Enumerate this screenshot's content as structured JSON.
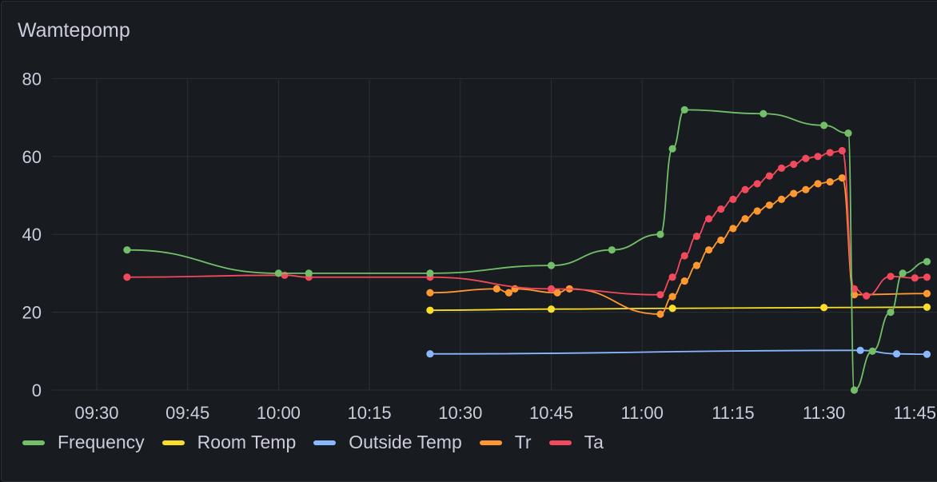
{
  "panel": {
    "title": "Wamtepomp"
  },
  "chart_data": {
    "type": "line",
    "title": "Wamtepomp",
    "xlabel": "",
    "ylabel": "",
    "ylim": [
      0,
      80
    ],
    "xlim": [
      "09:22",
      "11:47"
    ],
    "yticks": [
      "0",
      "20",
      "40",
      "60",
      "80"
    ],
    "xticks": [
      "09:30",
      "09:45",
      "10:00",
      "10:15",
      "10:30",
      "10:45",
      "11:00",
      "11:15",
      "11:30",
      "11:45"
    ],
    "grid": true,
    "legend_position": "bottom-left",
    "series": [
      {
        "name": "Frequency",
        "color": "#73bf69",
        "points": [
          [
            "09:35",
            36
          ],
          [
            "10:00",
            30
          ],
          [
            "10:05",
            30
          ],
          [
            "10:25",
            30
          ],
          [
            "10:45",
            32
          ],
          [
            "10:55",
            36
          ],
          [
            "11:03",
            40
          ],
          [
            "11:05",
            62
          ],
          [
            "11:07",
            72
          ],
          [
            "11:20",
            71
          ],
          [
            "11:30",
            68
          ],
          [
            "11:34",
            66
          ],
          [
            "11:35",
            0
          ],
          [
            "11:38",
            10
          ],
          [
            "11:41",
            20
          ],
          [
            "11:43",
            30
          ],
          [
            "11:47",
            33
          ]
        ]
      },
      {
        "name": "Room Temp",
        "color": "#fade2a",
        "points": [
          [
            "10:25",
            20.5
          ],
          [
            "10:45",
            20.8
          ],
          [
            "11:05",
            21
          ],
          [
            "11:30",
            21.2
          ],
          [
            "11:47",
            21.3
          ]
        ]
      },
      {
        "name": "Outside Temp",
        "color": "#8ab8ff",
        "points": [
          [
            "10:25",
            9.3
          ],
          [
            "11:36",
            10.2
          ],
          [
            "11:42",
            9.3
          ],
          [
            "11:47",
            9.2
          ]
        ]
      },
      {
        "name": "Tr",
        "color": "#ff9830",
        "points": [
          [
            "10:25",
            25
          ],
          [
            "10:36",
            26
          ],
          [
            "10:38",
            25
          ],
          [
            "10:39",
            26
          ],
          [
            "10:46",
            25
          ],
          [
            "10:48",
            26
          ],
          [
            "11:03",
            19.5
          ],
          [
            "11:05",
            24
          ],
          [
            "11:07",
            28
          ],
          [
            "11:09",
            32
          ],
          [
            "11:11",
            36
          ],
          [
            "11:13",
            38.5
          ],
          [
            "11:15",
            41.5
          ],
          [
            "11:17",
            44
          ],
          [
            "11:19",
            46
          ],
          [
            "11:21",
            47.5
          ],
          [
            "11:23",
            49
          ],
          [
            "11:25",
            50.5
          ],
          [
            "11:27",
            51.5
          ],
          [
            "11:29",
            53
          ],
          [
            "11:31",
            53.5
          ],
          [
            "11:33",
            54.5
          ],
          [
            "11:35",
            24.5
          ],
          [
            "11:47",
            24.8
          ]
        ]
      },
      {
        "name": "Ta",
        "color": "#f2495c",
        "points": [
          [
            "09:35",
            29
          ],
          [
            "10:01",
            29.5
          ],
          [
            "10:05",
            29
          ],
          [
            "10:25",
            29
          ],
          [
            "10:45",
            26
          ],
          [
            "11:03",
            24.5
          ],
          [
            "11:05",
            29
          ],
          [
            "11:07",
            34.5
          ],
          [
            "11:09",
            39.5
          ],
          [
            "11:11",
            44
          ],
          [
            "11:13",
            46.5
          ],
          [
            "11:15",
            49
          ],
          [
            "11:17",
            51.5
          ],
          [
            "11:19",
            53
          ],
          [
            "11:21",
            55
          ],
          [
            "11:23",
            57
          ],
          [
            "11:25",
            58
          ],
          [
            "11:27",
            59.5
          ],
          [
            "11:29",
            60
          ],
          [
            "11:31",
            61
          ],
          [
            "11:33",
            61.5
          ],
          [
            "11:35",
            26
          ],
          [
            "11:37",
            24.2
          ],
          [
            "11:41",
            29.2
          ],
          [
            "11:45",
            28.8
          ],
          [
            "11:47",
            29
          ]
        ]
      }
    ]
  }
}
